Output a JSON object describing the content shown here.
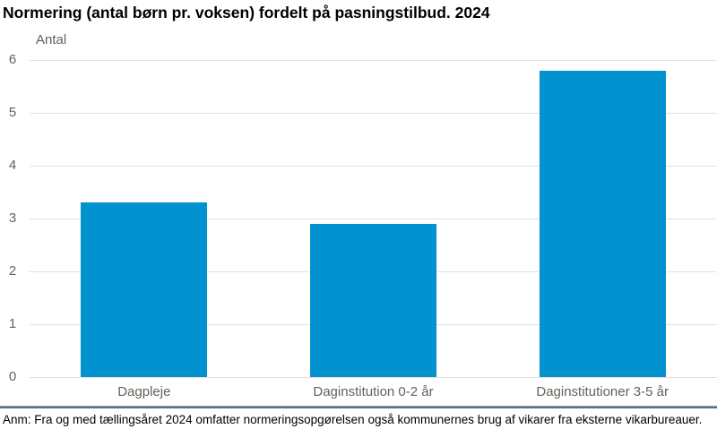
{
  "header": {
    "title": "Normering (antal børn pr. voksen) fordelt på pasningstilbud. 2024"
  },
  "footer": {
    "note": "Anm: Fra og med tællingsåret 2024 omfatter normeringsopgørelsen også kommunernes brug af vikarer fra eksterne vikarbureauer."
  },
  "chart_data": {
    "type": "bar",
    "title": "Normering (antal børn pr. voksen) fordelt på pasningstilbud. 2024",
    "ylabel": "Antal",
    "xlabel": "",
    "categories": [
      "Dagpleje",
      "Daginstitution 0-2 år",
      "Daginstitutioner 3-5 år"
    ],
    "values": [
      3.3,
      2.9,
      5.8
    ],
    "ylim": [
      0,
      6
    ],
    "yticks": [
      0,
      1,
      2,
      3,
      4,
      5,
      6
    ],
    "grid": true,
    "legend_position": "none",
    "colors": {
      "bar": "#0292d0",
      "gridline": "#e3e2da",
      "axis_text": "#62625a",
      "title_text": "#000000",
      "note_text": "#000000"
    }
  }
}
